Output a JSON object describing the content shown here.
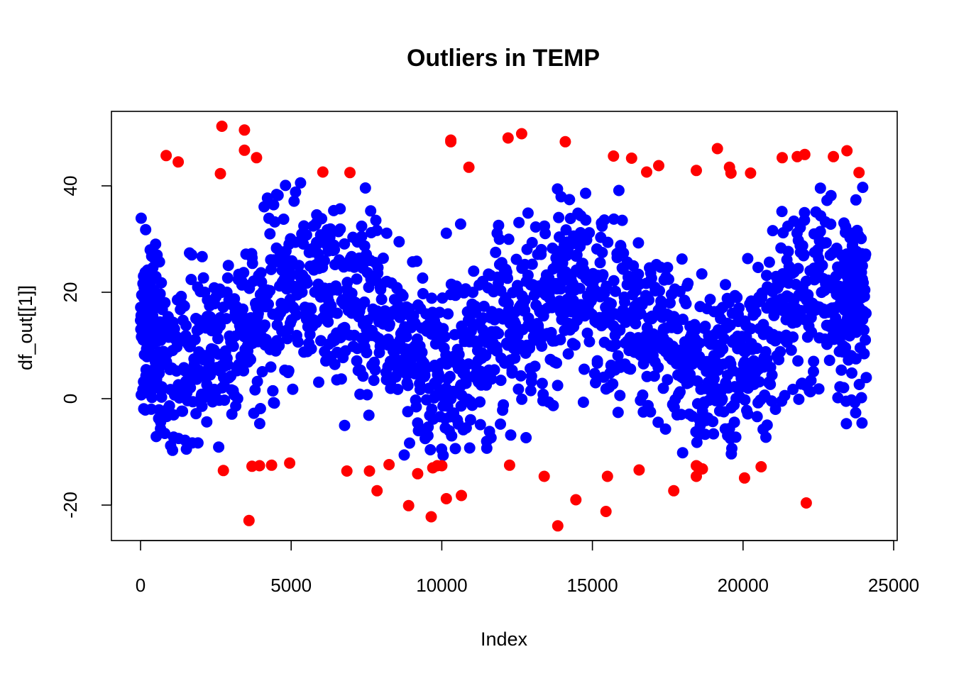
{
  "chart_data": {
    "type": "scatter",
    "title": "Outliers in TEMP",
    "xlabel": "Index",
    "ylabel": "df_out[[1]]",
    "xlim": [
      -1000,
      25500
    ],
    "ylim": [
      -27,
      54
    ],
    "x_ticks": [
      0,
      5000,
      10000,
      15000,
      20000,
      25000
    ],
    "x_tick_labels": [
      "0",
      "5000",
      "10000",
      "15000",
      "20000",
      "25000"
    ],
    "y_ticks": [
      -20,
      0,
      20,
      40
    ],
    "y_tick_labels": [
      "-20",
      "0",
      "20",
      "40"
    ],
    "grid": false,
    "legend": "none",
    "colors": {
      "normal": "#0000ff",
      "outlier": "#ff0000"
    },
    "n_points": 24000,
    "series": [
      {
        "role": "normal",
        "note_range": [
          -11,
          41
        ]
      },
      {
        "role": "outlier",
        "x": [
          850,
          1250,
          2650,
          2700,
          2750,
          3450,
          3450,
          3600,
          3700,
          3850,
          3950,
          4350,
          4950,
          6050,
          6850,
          6950,
          7600,
          7850,
          8250,
          8900,
          9200,
          9650,
          9700,
          9850,
          10000,
          10150,
          10300,
          10300,
          10650,
          10900,
          12200,
          12250,
          12650,
          13400,
          13850,
          14100,
          14450,
          15450,
          15500,
          15700,
          16300,
          16550,
          16800,
          17200,
          17700,
          18450,
          18450,
          18450,
          18500,
          18550,
          18650,
          19150,
          19550,
          19600,
          20050,
          20250,
          20600,
          21300,
          21800,
          22050,
          22100,
          23000,
          23450,
          23850
        ],
        "y": [
          45.7,
          44.5,
          42.3,
          51.2,
          -13.5,
          46.7,
          50.5,
          -22.9,
          -12.7,
          45.3,
          -12.6,
          -12.5,
          -12.1,
          42.6,
          -13.6,
          42.5,
          -13.6,
          -17.3,
          -12.4,
          -20.1,
          -14.1,
          -22.2,
          -13.0,
          -12.6,
          -12.6,
          -18.8,
          48.3,
          48.6,
          -18.2,
          43.5,
          49.0,
          -12.5,
          49.8,
          -14.6,
          -23.9,
          48.3,
          -19.0,
          -21.2,
          -14.6,
          45.6,
          45.2,
          -13.4,
          42.6,
          43.8,
          -17.3,
          42.9,
          -12.6,
          -14.6,
          -12.8,
          -13.3,
          -13.2,
          47.0,
          43.5,
          42.4,
          -14.9,
          42.4,
          -12.8,
          45.3,
          45.5,
          45.9,
          -19.6,
          45.5,
          46.6,
          42.5
        ]
      }
    ]
  }
}
